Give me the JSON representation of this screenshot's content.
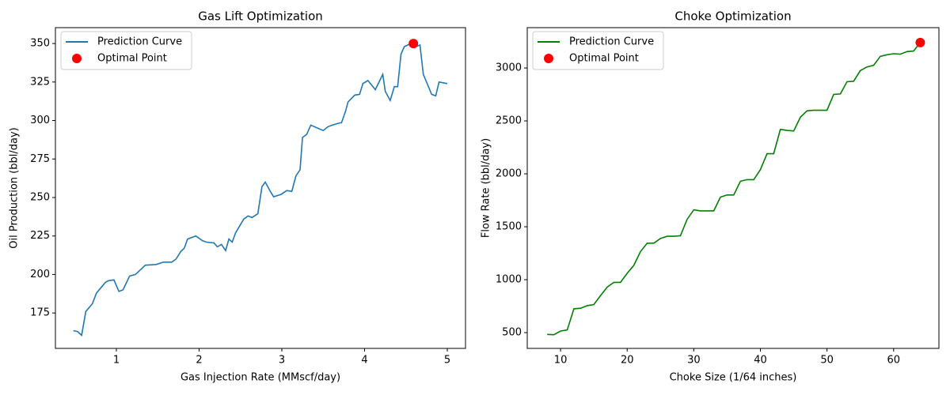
{
  "chart_data": [
    {
      "type": "line",
      "title": "Gas Lift Optimization",
      "xlabel": "Gas Injection Rate (MMscf/day)",
      "ylabel": "Oil Production (bbl/day)",
      "xlim": [
        0.263,
        5.22
      ],
      "ylim": [
        152,
        360.3
      ],
      "xticks": [
        1,
        2,
        3,
        4,
        5
      ],
      "yticks": [
        175,
        200,
        225,
        250,
        275,
        300,
        325,
        350
      ],
      "legend": "upper left",
      "series": [
        {
          "name": "Prediction Curve",
          "type": "line",
          "color": "#1f77b4",
          "x": [
            0.48,
            0.53,
            0.58,
            0.63,
            0.71,
            0.76,
            0.87,
            0.91,
            0.97,
            1.03,
            1.08,
            1.16,
            1.23,
            1.29,
            1.35,
            1.48,
            1.57,
            1.67,
            1.72,
            1.78,
            1.82,
            1.86,
            1.96,
            2.04,
            2.09,
            2.18,
            2.22,
            2.27,
            2.32,
            2.36,
            2.4,
            2.44,
            2.54,
            2.59,
            2.64,
            2.71,
            2.76,
            2.8,
            2.86,
            2.9,
            2.99,
            3.06,
            3.12,
            3.17,
            3.22,
            3.25,
            3.3,
            3.35,
            3.5,
            3.56,
            3.61,
            3.7,
            3.72,
            3.77,
            3.8,
            3.88,
            3.94,
            3.98,
            4.04,
            4.13,
            4.22,
            4.25,
            4.31,
            4.36,
            4.4,
            4.44,
            4.48,
            4.56,
            4.62,
            4.67,
            4.71,
            4.81,
            4.86,
            4.9,
            5.0
          ],
          "values": [
            163.5,
            163,
            160.5,
            176,
            181,
            188,
            195,
            196,
            196.5,
            189,
            190,
            199,
            200,
            203,
            206,
            206.5,
            208,
            208,
            210,
            215,
            217,
            223,
            225,
            222,
            221,
            220.5,
            218,
            219.5,
            215.5,
            223,
            221,
            227,
            236,
            238,
            237,
            239.5,
            257,
            260,
            254,
            250.5,
            252,
            254.5,
            254,
            264,
            268,
            289,
            291,
            297,
            293.5,
            296,
            297,
            298.5,
            298.5,
            306,
            312,
            316.5,
            317,
            324,
            326,
            320,
            330,
            319,
            313,
            322,
            322,
            343,
            348,
            350,
            348,
            349,
            330,
            317,
            316,
            325,
            324
          ]
        },
        {
          "name": "Optimal Point",
          "type": "scatter",
          "color": "#ff0000",
          "x": [
            4.59
          ],
          "values": [
            350
          ]
        }
      ]
    },
    {
      "type": "line",
      "title": "Choke Optimization",
      "xlabel": "Choke Size (1/64 inches)",
      "ylabel": "Flow Rate (bbl/day)",
      "xlim": [
        5,
        66.8
      ],
      "ylim": [
        351,
        3381
      ],
      "xticks": [
        10,
        20,
        30,
        40,
        50,
        60
      ],
      "yticks": [
        500,
        1000,
        1500,
        2000,
        2500,
        3000
      ],
      "legend": "upper left",
      "series": [
        {
          "name": "Prediction Curve",
          "type": "line",
          "color": "#008000",
          "x": [
            8,
            9,
            10,
            11,
            12,
            13,
            14,
            15,
            16,
            17,
            18,
            19,
            20,
            21,
            22,
            23,
            24,
            25,
            26,
            27,
            28,
            29,
            30,
            31,
            32,
            33,
            34,
            35,
            36,
            37,
            38,
            39,
            40,
            41,
            42,
            43,
            44,
            45,
            46,
            47,
            48,
            49,
            50,
            51,
            52,
            53,
            54,
            55,
            56,
            57,
            58,
            59,
            60,
            61,
            62,
            63,
            64
          ],
          "values": [
            483,
            480,
            515,
            525,
            725,
            730,
            755,
            765,
            850,
            930,
            975,
            975,
            1060,
            1135,
            1265,
            1345,
            1345,
            1390,
            1410,
            1410,
            1415,
            1570,
            1660,
            1650,
            1650,
            1650,
            1780,
            1800,
            1800,
            1930,
            1945,
            1945,
            2040,
            2190,
            2190,
            2420,
            2410,
            2405,
            2535,
            2595,
            2600,
            2600,
            2600,
            2750,
            2755,
            2870,
            2875,
            2975,
            3010,
            3025,
            3110,
            3125,
            3135,
            3130,
            3155,
            3160,
            3240
          ]
        },
        {
          "name": "Optimal Point",
          "type": "scatter",
          "color": "#ff0000",
          "x": [
            64
          ],
          "values": [
            3240
          ]
        }
      ]
    }
  ]
}
